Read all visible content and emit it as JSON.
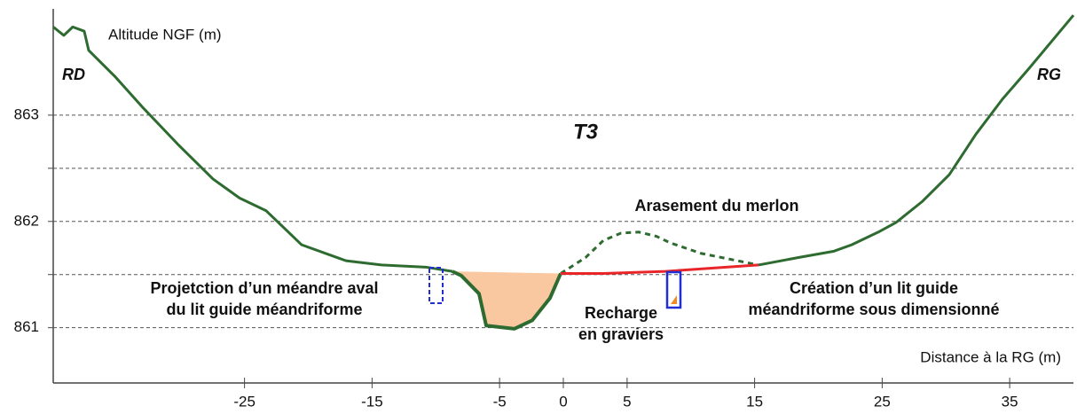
{
  "chart_data": {
    "type": "line",
    "title": "T3",
    "y_label": "Altitude NGF (m)",
    "x_label": "Distance à la RG (m)",
    "xlim": [
      -40,
      40
    ],
    "ylim": [
      860.48,
      864
    ],
    "xticks": [
      -25,
      -15,
      -5,
      0,
      5,
      15,
      25,
      35
    ],
    "yticks": [
      861,
      {
        "value": 861.5,
        "label": null
      },
      862,
      {
        "value": 862.5,
        "label": null
      },
      863
    ],
    "grid": true,
    "series": [
      {
        "color": "#2e6b30",
        "width": 3,
        "style": "solid",
        "x": [
          -40,
          -39.17,
          -38.47,
          -37.57,
          -37.22,
          -35.13,
          -33.04,
          -30.26,
          -27.48,
          -25.39,
          -23.3,
          -20.52,
          -17.04,
          -14.26,
          -10.78,
          -8.7
        ],
        "values": [
          863.83,
          863.75,
          863.83,
          863.79,
          863.61,
          863.36,
          863.08,
          862.73,
          862.4,
          862.22,
          862.1,
          861.78,
          861.63,
          861.59,
          861.57,
          861.53
        ]
      },
      {
        "color": "#2e6b30",
        "width": 4,
        "style": "solid",
        "fill": "#f9c8a0",
        "x": [
          -8.7,
          -8.0,
          -6.61,
          -6.05,
          -3.83,
          -2.43,
          -1.04,
          -0.21
        ],
        "values": [
          861.53,
          861.49,
          861.32,
          861.02,
          860.99,
          861.07,
          861.28,
          861.51
        ]
      },
      {
        "color": "#2e6b30",
        "width": 3,
        "style": "solid",
        "x": [
          15.3,
          18.43,
          21.22,
          22.61,
          24.7,
          26.09,
          28.17,
          30.26,
          32.35,
          34.43,
          36.52,
          40
        ],
        "values": [
          861.59,
          861.66,
          861.72,
          861.78,
          861.9,
          861.99,
          862.19,
          862.44,
          862.82,
          863.15,
          863.44,
          863.94
        ]
      },
      {
        "color": "#2e6b30",
        "width": 3,
        "style": "dashed",
        "x": [
          -0.21,
          1.74,
          3.13,
          4.52,
          5.91,
          7.3,
          8.35,
          10.78,
          15.3
        ],
        "values": [
          861.51,
          861.66,
          861.82,
          861.89,
          861.9,
          861.86,
          861.8,
          861.7,
          861.59
        ]
      },
      {
        "color": "#e8262a",
        "width": 3,
        "style": "solid",
        "x": [
          -0.21,
          3.13,
          8.0,
          15.3
        ],
        "values": [
          861.51,
          861.51,
          861.53,
          861.59
        ]
      }
    ],
    "annotations": [
      {
        "text": [
          "RD"
        ],
        "color": "#000000"
      },
      {
        "text": [
          "RG"
        ],
        "color": "#000000"
      },
      {
        "text": [
          "Arasement du merlon"
        ],
        "color": "#e8262a"
      },
      {
        "text": [
          "Projetction d’un méandre aval",
          "du lit guide méandriforme"
        ],
        "color": "#1f2fd1"
      },
      {
        "text": [
          "Recharge",
          "en graviers"
        ],
        "color": "#f08a24"
      },
      {
        "text": [
          "Création d’un lit guide",
          "méandriforme sous dimensionné"
        ],
        "color": "#1f2fd1"
      }
    ]
  }
}
